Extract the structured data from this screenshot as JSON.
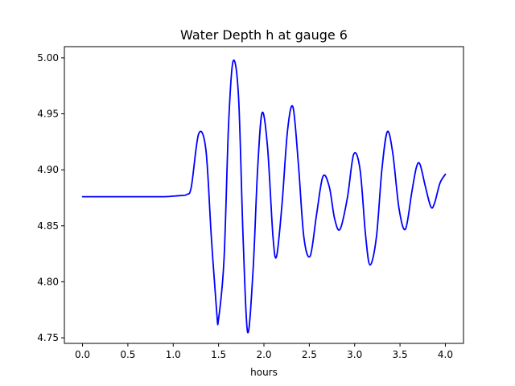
{
  "chart_data": {
    "type": "line",
    "title": "Water Depth h at gauge 6",
    "xlabel": "hours",
    "ylabel": "",
    "xlim": [
      -0.2,
      4.2
    ],
    "ylim": [
      4.745,
      5.01
    ],
    "grid": false,
    "x_ticks": [
      0.0,
      0.5,
      1.0,
      1.5,
      2.0,
      2.5,
      3.0,
      3.5,
      4.0
    ],
    "x_tick_labels": [
      "0.0",
      "0.5",
      "1.0",
      "1.5",
      "2.0",
      "2.5",
      "3.0",
      "3.5",
      "4.0"
    ],
    "y_ticks": [
      4.75,
      4.8,
      4.85,
      4.9,
      4.95,
      5.0
    ],
    "y_tick_labels": [
      "4.75",
      "4.80",
      "4.85",
      "4.90",
      "4.95",
      "5.00"
    ],
    "series": [
      {
        "color": "#0000ff",
        "x": [
          0.0,
          0.5,
          0.9,
          1.0,
          1.08,
          1.15,
          1.2,
          1.28,
          1.36,
          1.42,
          1.48,
          1.5,
          1.56,
          1.61,
          1.66,
          1.72,
          1.77,
          1.82,
          1.88,
          1.93,
          1.98,
          2.04,
          2.1,
          2.14,
          2.2,
          2.26,
          2.32,
          2.38,
          2.44,
          2.51,
          2.58,
          2.65,
          2.72,
          2.78,
          2.84,
          2.92,
          2.99,
          3.06,
          3.12,
          3.17,
          3.24,
          3.3,
          3.36,
          3.42,
          3.49,
          3.56,
          3.63,
          3.68,
          3.72,
          3.78,
          3.84,
          3.88,
          3.94,
          4.0
        ],
        "y": [
          4.876,
          4.876,
          4.876,
          4.8765,
          4.877,
          4.878,
          4.885,
          4.932,
          4.918,
          4.84,
          4.772,
          4.767,
          4.82,
          4.94,
          4.997,
          4.965,
          4.84,
          4.755,
          4.81,
          4.9,
          4.951,
          4.92,
          4.84,
          4.823,
          4.87,
          4.935,
          4.956,
          4.905,
          4.84,
          4.823,
          4.86,
          4.894,
          4.885,
          4.856,
          4.847,
          4.875,
          4.914,
          4.9,
          4.842,
          4.815,
          4.84,
          4.9,
          4.934,
          4.915,
          4.865,
          4.847,
          4.88,
          4.902,
          4.905,
          4.885,
          4.867,
          4.87,
          4.888,
          4.896
        ]
      }
    ]
  }
}
